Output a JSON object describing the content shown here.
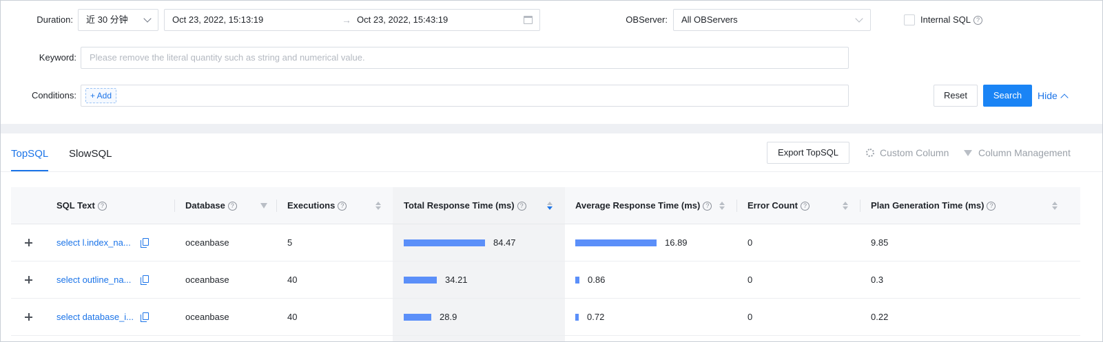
{
  "filters": {
    "duration_label": "Duration",
    "duration_value": "近 30 分钟",
    "start_time": "Oct 23, 2022, 15:13:19",
    "range_separator": "→",
    "end_time": "Oct 23, 2022, 15:43:19",
    "observer_label": "OBServer",
    "observer_value": "All OBServers",
    "internal_sql_label": "Internal SQL",
    "internal_sql_checked": false,
    "keyword_label": "Keyword",
    "keyword_placeholder": "Please remove the literal quantity such as string and numerical value.",
    "conditions_label": "Conditions",
    "add_label": "+ Add",
    "reset_label": "Reset",
    "search_label": "Search",
    "hide_label": "Hide"
  },
  "tabs": [
    {
      "label": "TopSQL",
      "active": true
    },
    {
      "label": "SlowSQL",
      "active": false
    }
  ],
  "toolbar": {
    "export_label": "Export TopSQL",
    "custom_column_label": "Custom Column",
    "column_management_label": "Column Management"
  },
  "table": {
    "columns": [
      "SQL Text",
      "Database",
      "Executions",
      "Total Response Time (ms)",
      "Average Response Time (ms)",
      "Error Count",
      "Plan Generation Time (ms)"
    ],
    "sorted_column": "Total Response Time (ms)",
    "sort_order": "descending",
    "rows": [
      {
        "sql_text": "select l.index_na...",
        "database": "oceanbase",
        "executions": "5",
        "total_response_time": "84.47",
        "avg_response_time": "16.89",
        "error_count": "0",
        "plan_generation_time": "9.85"
      },
      {
        "sql_text": "select outline_na...",
        "database": "oceanbase",
        "executions": "40",
        "total_response_time": "34.21",
        "avg_response_time": "0.86",
        "error_count": "0",
        "plan_generation_time": "0.3"
      },
      {
        "sql_text": "select database_i...",
        "database": "oceanbase",
        "executions": "40",
        "total_response_time": "28.9",
        "avg_response_time": "0.72",
        "error_count": "0",
        "plan_generation_time": "0.22"
      }
    ]
  },
  "colors": {
    "accent": "#1a73e8",
    "primary_button": "#1a84f5",
    "bar": "#5b8ff9"
  }
}
